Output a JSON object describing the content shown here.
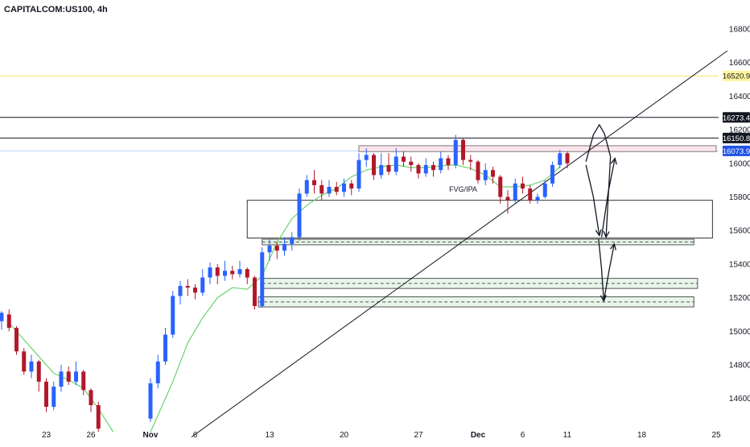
{
  "header": {
    "symbol": "CAPITALCOM:US100, 4h"
  },
  "chart_data": {
    "type": "candlestick",
    "y_axis": {
      "range": [
        14400,
        16900
      ],
      "ticks": [
        14600,
        14800,
        15000,
        15200,
        15400,
        15600,
        15800,
        16000,
        16200,
        16400,
        16600,
        16800
      ],
      "tick_labels": [
        "14600.0",
        "14800.0",
        "15000.0",
        "15200.0",
        "15400.0",
        "15600.0",
        "15800.0",
        "16000.0",
        "16200.0",
        "16400.0",
        "16600.0",
        "16800.0"
      ]
    },
    "x_axis": {
      "labels": [
        {
          "text": "23",
          "slot": 6
        },
        {
          "text": "26",
          "slot": 12
        },
        {
          "text": "Nov",
          "slot": 20
        },
        {
          "text": "6",
          "slot": 26
        },
        {
          "text": "13",
          "slot": 36
        },
        {
          "text": "20",
          "slot": 46
        },
        {
          "text": "27",
          "slot": 56
        },
        {
          "text": "Dec",
          "slot": 64
        },
        {
          "text": "6",
          "slot": 70
        },
        {
          "text": "11",
          "slot": 76
        },
        {
          "text": "18",
          "slot": 86
        },
        {
          "text": "25",
          "slot": 96
        }
      ]
    },
    "price_labels": [
      {
        "value": 16520.9,
        "text": "16520.9",
        "bg": "#fff59d",
        "color": "#131722",
        "line": "#f5e663"
      },
      {
        "value": 16273.4,
        "text": "16273.4",
        "bg": "#131722",
        "color": "#ffffff",
        "line": "#131722"
      },
      {
        "value": 16150.8,
        "text": "16150.8",
        "bg": "#131722",
        "color": "#ffffff",
        "line": "#131722"
      },
      {
        "value": 16073.9,
        "text": "16073.9",
        "bg": "#1e53e5",
        "color": "#ffffff",
        "line": "#bbd2f5"
      }
    ],
    "zones": [
      {
        "y1": 16105,
        "y2": 16070,
        "x1": 48,
        "x2": 96,
        "fill": "#fce4ec",
        "stroke": "#7a7a7a",
        "dashed": false
      },
      {
        "y1": 15780,
        "y2": 15555,
        "x1": 33,
        "x2": 95.5,
        "fill": "#ffffff",
        "stroke": "#333333",
        "dashed": false
      },
      {
        "y1": 15548,
        "y2": 15515,
        "x1": 35,
        "x2": 93,
        "fill": "#e8f5e9",
        "stroke": "#555555",
        "dashed": true
      },
      {
        "y1": 15315,
        "y2": 15255,
        "x1": 35,
        "x2": 93.5,
        "fill": "#e8f5e9",
        "stroke": "#555555",
        "dashed": true
      },
      {
        "y1": 15205,
        "y2": 15145,
        "x1": 34.5,
        "x2": 93,
        "fill": "#e8f5e9",
        "stroke": "#555555",
        "dashed": true
      }
    ],
    "annotations": [
      {
        "text": "FVG/IPA",
        "slot": 62,
        "value": 15830
      }
    ],
    "trendline": {
      "from": {
        "slot": 25.5,
        "value": 14370
      },
      "to": {
        "slot": 97.5,
        "value": 16670
      }
    },
    "ma_points": [
      [
        1,
        15050
      ],
      [
        3,
        14950
      ],
      [
        5,
        14850
      ],
      [
        7,
        14750
      ],
      [
        9,
        14710
      ],
      [
        11,
        14660
      ],
      [
        13,
        14540
      ],
      [
        15,
        14400
      ],
      [
        20,
        14400
      ],
      [
        23,
        14700
      ],
      [
        25,
        14930
      ],
      [
        27,
        15080
      ],
      [
        29,
        15200
      ],
      [
        31,
        15260
      ],
      [
        33,
        15250
      ],
      [
        35,
        15330
      ],
      [
        37,
        15530
      ],
      [
        39,
        15670
      ],
      [
        41,
        15750
      ],
      [
        43,
        15810
      ],
      [
        45,
        15850
      ],
      [
        47,
        15920
      ],
      [
        49,
        15960
      ],
      [
        51,
        15980
      ],
      [
        53,
        15990
      ],
      [
        55,
        15975
      ],
      [
        57,
        15975
      ],
      [
        59,
        15985
      ],
      [
        61,
        15990
      ],
      [
        63,
        15970
      ],
      [
        65,
        15930
      ],
      [
        67,
        15860
      ],
      [
        69,
        15860
      ],
      [
        71,
        15870
      ],
      [
        73,
        15900
      ],
      [
        75,
        15980
      ]
    ],
    "candles": [
      [
        0,
        15060,
        15110,
        15120,
        15010
      ],
      [
        1,
        15100,
        15020,
        15130,
        15000
      ],
      [
        2,
        15020,
        14880,
        15030,
        14860
      ],
      [
        3,
        14880,
        14760,
        14900,
        14740
      ],
      [
        4,
        14760,
        14820,
        14860,
        14720
      ],
      [
        5,
        14820,
        14700,
        14830,
        14640
      ],
      [
        6,
        14700,
        14550,
        14720,
        14520
      ],
      [
        7,
        14550,
        14670,
        14700,
        14530
      ],
      [
        8,
        14670,
        14760,
        14800,
        14640
      ],
      [
        9,
        14760,
        14700,
        14790,
        14680
      ],
      [
        10,
        14700,
        14760,
        14820,
        14680
      ],
      [
        11,
        14760,
        14650,
        14770,
        14620
      ],
      [
        12,
        14650,
        14560,
        14660,
        14520
      ],
      [
        13,
        14560,
        14420,
        14580,
        14400
      ],
      [
        20,
        14480,
        14690,
        14720,
        14460
      ],
      [
        21,
        14690,
        14820,
        14860,
        14660
      ],
      [
        22,
        14820,
        14980,
        15020,
        14800
      ],
      [
        23,
        14980,
        15210,
        15240,
        14960
      ],
      [
        24,
        15210,
        15270,
        15300,
        15160
      ],
      [
        25,
        15270,
        15260,
        15310,
        15210
      ],
      [
        26,
        15260,
        15230,
        15280,
        15190
      ],
      [
        27,
        15230,
        15320,
        15370,
        15210
      ],
      [
        28,
        15320,
        15380,
        15410,
        15280
      ],
      [
        29,
        15380,
        15330,
        15400,
        15280
      ],
      [
        30,
        15330,
        15360,
        15420,
        15300
      ],
      [
        31,
        15360,
        15340,
        15390,
        15310
      ],
      [
        32,
        15340,
        15370,
        15420,
        15320
      ],
      [
        33,
        15370,
        15320,
        15380,
        15280
      ],
      [
        34,
        15320,
        15150,
        15330,
        15130
      ],
      [
        35,
        15150,
        15470,
        15500,
        15140
      ],
      [
        36,
        15470,
        15510,
        15550,
        15420
      ],
      [
        37,
        15510,
        15480,
        15530,
        15430
      ],
      [
        38,
        15480,
        15520,
        15560,
        15450
      ],
      [
        39,
        15520,
        15560,
        15590,
        15480
      ],
      [
        40,
        15560,
        15820,
        15850,
        15540
      ],
      [
        41,
        15820,
        15900,
        15930,
        15800
      ],
      [
        42,
        15900,
        15870,
        15960,
        15820
      ],
      [
        43,
        15870,
        15820,
        15900,
        15780
      ],
      [
        44,
        15820,
        15860,
        15900,
        15800
      ],
      [
        45,
        15860,
        15830,
        15890,
        15810
      ],
      [
        46,
        15830,
        15880,
        15910,
        15800
      ],
      [
        47,
        15880,
        15850,
        15900,
        15810
      ],
      [
        48,
        15850,
        16020,
        16060,
        15830
      ],
      [
        49,
        16020,
        16050,
        16090,
        15980
      ],
      [
        50,
        16050,
        15930,
        16060,
        15900
      ],
      [
        51,
        15930,
        15990,
        16060,
        15910
      ],
      [
        52,
        15990,
        15950,
        16060,
        15930
      ],
      [
        53,
        15950,
        16040,
        16090,
        15930
      ],
      [
        54,
        16040,
        16010,
        16070,
        15980
      ],
      [
        55,
        16010,
        15990,
        16040,
        15950
      ],
      [
        56,
        15990,
        15940,
        16000,
        15910
      ],
      [
        57,
        15940,
        15990,
        16030,
        15920
      ],
      [
        58,
        15990,
        15960,
        16010,
        15920
      ],
      [
        59,
        15960,
        16030,
        16070,
        15940
      ],
      [
        60,
        16030,
        15990,
        16050,
        15960
      ],
      [
        61,
        15990,
        16140,
        16170,
        15970
      ],
      [
        62,
        16140,
        16020,
        16150,
        15990
      ],
      [
        63,
        16020,
        16010,
        16050,
        15960
      ],
      [
        64,
        16010,
        15900,
        16020,
        15880
      ],
      [
        65,
        15900,
        15960,
        16000,
        15870
      ],
      [
        66,
        15960,
        15920,
        15980,
        15880
      ],
      [
        67,
        15920,
        15800,
        15930,
        15760
      ],
      [
        68,
        15800,
        15780,
        15840,
        15700
      ],
      [
        69,
        15780,
        15880,
        15910,
        15760
      ],
      [
        70,
        15880,
        15850,
        15920,
        15820
      ],
      [
        71,
        15850,
        15780,
        15870,
        15760
      ],
      [
        72,
        15780,
        15800,
        15820,
        15760
      ],
      [
        73,
        15800,
        15880,
        15900,
        15790
      ],
      [
        74,
        15880,
        15990,
        16010,
        15860
      ],
      [
        75,
        15990,
        16060,
        16080,
        15970
      ],
      [
        76,
        16060,
        16000,
        16070,
        15970
      ]
    ]
  },
  "drawing": {
    "arrows": [
      {
        "points": [
          [
            78.5,
            16010
          ],
          [
            79.5,
            16170
          ],
          [
            80.3,
            16230
          ],
          [
            81,
            16175
          ],
          [
            81.8,
            16040
          ],
          [
            81.5,
            15800
          ],
          [
            81.2,
            15560
          ]
        ],
        "head": "end"
      },
      {
        "points": [
          [
            78.5,
            15990
          ],
          [
            79.5,
            15800
          ],
          [
            80.3,
            15570
          ]
        ],
        "head": "end"
      },
      {
        "points": [
          [
            80.6,
            15560
          ],
          [
            81.5,
            15830
          ],
          [
            82.4,
            16030
          ]
        ],
        "head": "end"
      },
      {
        "points": [
          [
            80.2,
            15550
          ],
          [
            80.6,
            15370
          ],
          [
            80.9,
            15180
          ]
        ],
        "head": "end"
      },
      {
        "points": [
          [
            80.9,
            15180
          ],
          [
            81.6,
            15360
          ],
          [
            82.3,
            15520
          ]
        ],
        "head": "end"
      }
    ]
  },
  "colors": {
    "up": "#2962ff",
    "down": "#b2182b",
    "ma": "#69d46c",
    "grid": "#ffffff",
    "text": "#131722"
  }
}
